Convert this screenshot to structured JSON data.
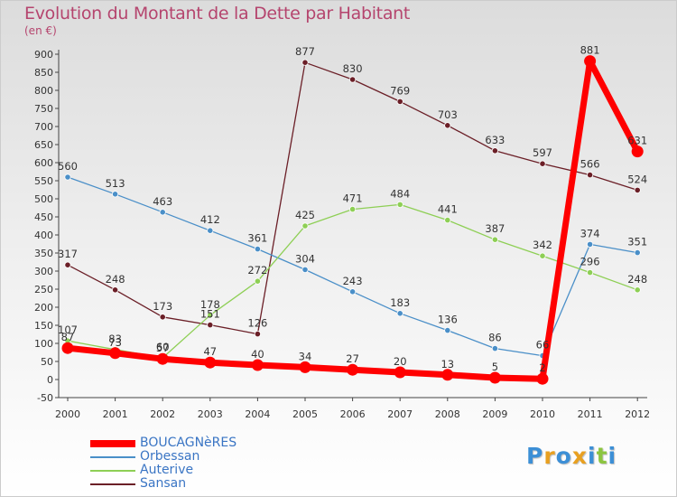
{
  "chart_data": {
    "type": "line",
    "title": "Evolution du Montant de la Dette par Habitant",
    "subtitle": "(en €)",
    "xlabel": "",
    "ylabel": "",
    "x": [
      "2000",
      "2001",
      "2002",
      "2003",
      "2004",
      "2005",
      "2006",
      "2007",
      "2008",
      "2009",
      "2010",
      "2011",
      "2012"
    ],
    "ylim": [
      -50,
      900
    ],
    "yticks": [
      -50,
      0,
      50,
      100,
      150,
      200,
      250,
      300,
      350,
      400,
      450,
      500,
      550,
      600,
      650,
      700,
      750,
      800,
      850,
      900
    ],
    "grid": false,
    "legend_position": "bottom-left",
    "series": [
      {
        "name": "Sansan",
        "color": "#6b1f27",
        "values": [
          317,
          248,
          173,
          151,
          126,
          877,
          830,
          769,
          703,
          633,
          597,
          566,
          524
        ]
      },
      {
        "name": "Orbessan",
        "color": "#4a8fc8",
        "values": [
          560,
          513,
          463,
          412,
          361,
          304,
          243,
          183,
          136,
          86,
          66,
          374,
          351
        ]
      },
      {
        "name": "Auterive",
        "color": "#8ecf55",
        "values": [
          107,
          83,
          60,
          178,
          272,
          425,
          471,
          484,
          441,
          387,
          342,
          296,
          248
        ]
      },
      {
        "name": "BOUCAGNèRES",
        "color": "#ff0000",
        "values": [
          87,
          73,
          57,
          47,
          40,
          34,
          27,
          20,
          13,
          5,
          2,
          881,
          631
        ]
      }
    ]
  },
  "legend": {
    "items": [
      {
        "label": "BOUCAGNèRES",
        "color": "#ff0000"
      },
      {
        "label": "Orbessan",
        "color": "#4a8fc8"
      },
      {
        "label": "Auterive",
        "color": "#8ecf55"
      },
      {
        "label": "Sansan",
        "color": "#6b1f27"
      }
    ]
  },
  "brand": {
    "letters": [
      "P",
      "r",
      "o",
      "x",
      "i",
      "t",
      "i"
    ],
    "colors": [
      "#3c8fd6",
      "#e8a020",
      "#3c8fd6",
      "#e8a020",
      "#3c8fd6",
      "#8cc540",
      "#3c8fd6"
    ]
  }
}
